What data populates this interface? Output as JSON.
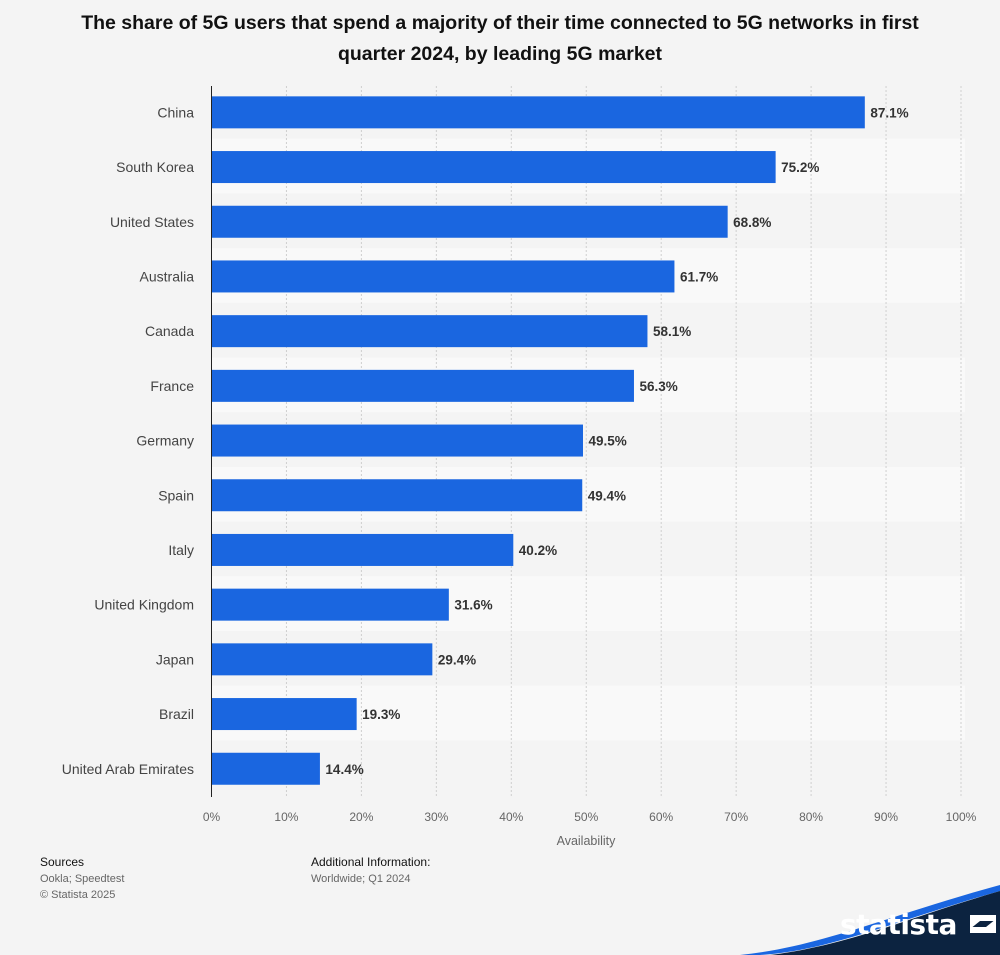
{
  "title": "The share of 5G users that spend a majority of their time connected to 5G networks in first quarter 2024, by leading 5G market",
  "chart_data": {
    "type": "bar",
    "orientation": "horizontal",
    "categories": [
      "China",
      "South Korea",
      "United States",
      "Australia",
      "Canada",
      "France",
      "Germany",
      "Spain",
      "Italy",
      "United Kingdom",
      "Japan",
      "Brazil",
      "United Arab Emirates"
    ],
    "values": [
      87.1,
      75.2,
      68.8,
      61.7,
      58.1,
      56.3,
      49.5,
      49.4,
      40.2,
      31.6,
      29.4,
      19.3,
      14.4
    ],
    "value_labels": [
      "87.1%",
      "75.2%",
      "68.8%",
      "61.7%",
      "58.1%",
      "56.3%",
      "49.5%",
      "49.4%",
      "40.2%",
      "31.6%",
      "29.4%",
      "19.3%",
      "14.4%"
    ],
    "xlabel": "Availability",
    "ylabel": "",
    "xlim": [
      0,
      100
    ],
    "ticks": [
      "0%",
      "10%",
      "20%",
      "30%",
      "40%",
      "50%",
      "60%",
      "70%",
      "80%",
      "90%",
      "100%"
    ],
    "grid": true,
    "bar_color": "#1a66e0"
  },
  "footer": {
    "sources_heading": "Sources",
    "sources_text": "Ookla; Speedtest",
    "copyright": "© Statista 2025",
    "additional_heading": "Additional Information:",
    "additional_text": "Worldwide; Q1 2024"
  },
  "brand": {
    "name": "statista",
    "dark_color": "#0c2340",
    "accent_color": "#1a66e0"
  }
}
